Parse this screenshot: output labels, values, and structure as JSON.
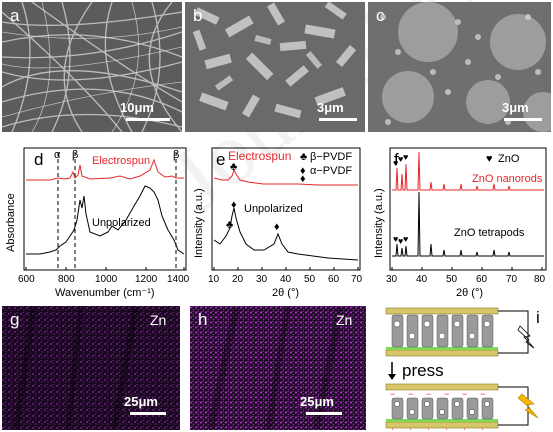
{
  "panels": {
    "a": {
      "label": "a",
      "scale": "10μm"
    },
    "b": {
      "label": "b",
      "scale": "3μm"
    },
    "c": {
      "label": "c",
      "scale": "3μm"
    },
    "d": {
      "label": "d",
      "ylabel": "Absorbance",
      "xlabel": "Wavenumber (cm⁻¹)",
      "xticks": [
        "600",
        "800",
        "1000",
        "1200",
        "1400"
      ],
      "legend_top": "Electrospun",
      "legend_bottom": "Unpolarized",
      "markers": [
        "α",
        "β",
        "β"
      ]
    },
    "e": {
      "label": "e",
      "ylabel": "Intensity (a.u.)",
      "xlabel": "2θ (°)",
      "xticks": [
        "10",
        "20",
        "30",
        "40",
        "50",
        "60",
        "70"
      ],
      "series_top": "Electrospun",
      "series_bottom": "Unpolarized",
      "legend_beta": "β−PVDF",
      "legend_alpha": "α−PVDF"
    },
    "f": {
      "label": "f",
      "ylabel": "Intensity (a.u.)",
      "xlabel": "2θ (°)",
      "xticks": [
        "30",
        "40",
        "50",
        "60",
        "70",
        "80"
      ],
      "legend_zno": "ZnO",
      "series_top": "ZnO nanorods",
      "series_bottom": "ZnO tetrapods"
    },
    "g": {
      "label": "g",
      "element": "Zn",
      "scale": "25μm"
    },
    "h": {
      "label": "h",
      "element": "Zn",
      "scale": "25μm"
    },
    "i": {
      "label": "i",
      "action": "press"
    }
  },
  "colors": {
    "red": "#e8262a",
    "black": "#000000",
    "magenta_bg": "#1a0820",
    "electrode": "#d8c66a",
    "green": "#7ed957"
  }
}
